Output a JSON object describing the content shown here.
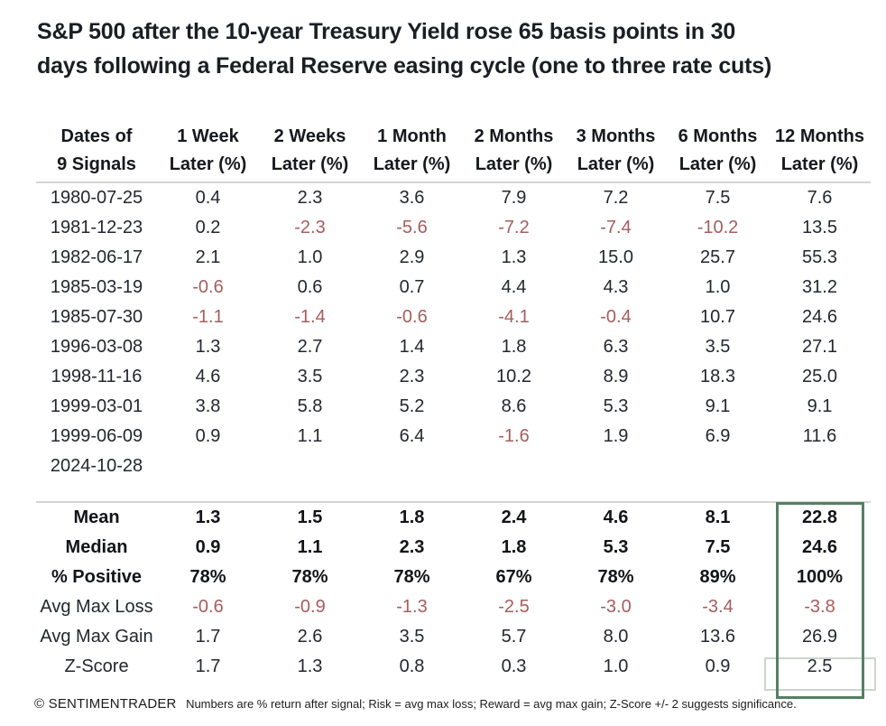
{
  "title": {
    "lines": [
      "S&P 500 after the 10-year Treasury Yield rose 65 basis points in 30",
      "days following a Federal Reserve easing cycle (one to three rate cuts)"
    ]
  },
  "chart_data": {
    "type": "table",
    "title": "S&P 500 after the 10-year Treasury Yield rose 65 basis points in 30 days following a Federal Reserve easing cycle (one to three rate cuts)",
    "header": {
      "label_col": [
        "Dates of",
        "9 Signals"
      ],
      "value_cols": [
        [
          "1 Week",
          "Later (%)"
        ],
        [
          "2 Weeks",
          "Later (%)"
        ],
        [
          "1 Month",
          "Later (%)"
        ],
        [
          "2 Months",
          "Later (%)"
        ],
        [
          "3 Months",
          "Later (%)"
        ],
        [
          "6 Months",
          "Later (%)"
        ],
        [
          "12 Months",
          "Later (%)"
        ]
      ]
    },
    "rows": [
      {
        "date": "1980-07-25",
        "values": [
          "0.4",
          "2.3",
          "3.6",
          "7.9",
          "7.2",
          "7.5",
          "7.6"
        ]
      },
      {
        "date": "1981-12-23",
        "values": [
          "0.2",
          "-2.3",
          "-5.6",
          "-7.2",
          "-7.4",
          "-10.2",
          "13.5"
        ]
      },
      {
        "date": "1982-06-17",
        "values": [
          "2.1",
          "1.0",
          "2.9",
          "1.3",
          "15.0",
          "25.7",
          "55.3"
        ]
      },
      {
        "date": "1985-03-19",
        "values": [
          "-0.6",
          "0.6",
          "0.7",
          "4.4",
          "4.3",
          "1.0",
          "31.2"
        ]
      },
      {
        "date": "1985-07-30",
        "values": [
          "-1.1",
          "-1.4",
          "-0.6",
          "-4.1",
          "-0.4",
          "10.7",
          "24.6"
        ]
      },
      {
        "date": "1996-03-08",
        "values": [
          "1.3",
          "2.7",
          "1.4",
          "1.8",
          "6.3",
          "3.5",
          "27.1"
        ]
      },
      {
        "date": "1998-11-16",
        "values": [
          "4.6",
          "3.5",
          "2.3",
          "10.2",
          "8.9",
          "18.3",
          "25.0"
        ]
      },
      {
        "date": "1999-03-01",
        "values": [
          "3.8",
          "5.8",
          "5.2",
          "8.6",
          "5.3",
          "9.1",
          "9.1"
        ]
      },
      {
        "date": "1999-06-09",
        "values": [
          "0.9",
          "1.1",
          "6.4",
          "-1.6",
          "1.9",
          "6.9",
          "11.6"
        ]
      },
      {
        "date": "2024-10-28",
        "values": [
          "",
          "",
          "",
          "",
          "",
          "",
          ""
        ]
      }
    ],
    "summary": [
      {
        "label": "Mean",
        "bold": true,
        "values": [
          "1.3",
          "1.5",
          "1.8",
          "2.4",
          "4.6",
          "8.1",
          "22.8"
        ]
      },
      {
        "label": "Median",
        "bold": true,
        "values": [
          "0.9",
          "1.1",
          "2.3",
          "1.8",
          "5.3",
          "7.5",
          "24.6"
        ]
      },
      {
        "label": "% Positive",
        "bold": true,
        "values": [
          "78%",
          "78%",
          "78%",
          "67%",
          "78%",
          "89%",
          "100%"
        ]
      },
      {
        "label": "Avg Max Loss",
        "bold": false,
        "values": [
          "-0.6",
          "-0.9",
          "-1.3",
          "-2.5",
          "-3.0",
          "-3.4",
          "-3.8"
        ]
      },
      {
        "label": "Avg Max Gain",
        "bold": false,
        "values": [
          "1.7",
          "2.6",
          "3.5",
          "5.7",
          "8.0",
          "13.6",
          "26.9"
        ]
      },
      {
        "label": "Z-Score",
        "bold": false,
        "values": [
          "1.7",
          "1.3",
          "0.8",
          "0.3",
          "1.0",
          "0.9",
          "2.5"
        ]
      }
    ],
    "highlight": {
      "column": "12 Months Later (%)",
      "scope": "summary-rows",
      "box_color": "#567f63",
      "zscore_cell_box_color": "#ccd6cc"
    }
  },
  "footer": {
    "copyright": "© SENTIMENTRADER",
    "note": "Numbers are % return after signal; Risk = avg max loss; Reward = avg max gain; Z-Score +/- 2 suggests significance."
  },
  "colors": {
    "negative_value": "#a65d5d",
    "value_text": "#23272f",
    "separator_line": "#d4d4d4",
    "highlight_box": "#567f63"
  }
}
